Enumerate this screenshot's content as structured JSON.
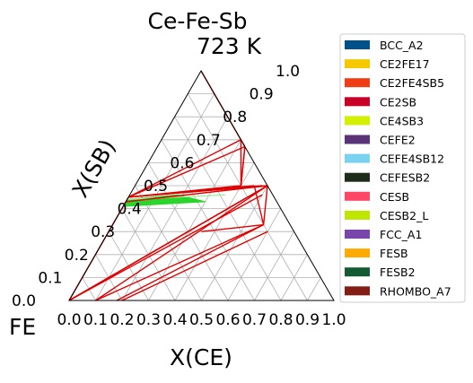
{
  "chart_data": {
    "type": "ternary-phase-diagram",
    "title": "Ce-Fe-Sb",
    "subtitle": "723  K",
    "corner_label": "FE",
    "xlabel": "X(CE)",
    "ylabel": "X(SB)",
    "xlim": [
      0,
      1
    ],
    "ylim": [
      0,
      1
    ],
    "x_ticks": [
      "0.0",
      "0.1",
      "0.2",
      "0.3",
      "0.4",
      "0.5",
      "0.6",
      "0.7",
      "0.8",
      "0.9",
      "1.0"
    ],
    "y_ticks": [
      "0.0",
      "0.1",
      "0.2",
      "0.3",
      "0.4",
      "0.5",
      "0.6",
      "0.7",
      "0.8",
      "0.9",
      "1.0"
    ],
    "grid": true,
    "legend_position": "right",
    "legend": [
      {
        "name": "BCC_A2",
        "color": "#00508C"
      },
      {
        "name": "CE2FE17",
        "color": "#F5C800"
      },
      {
        "name": "CE2FE4SB5",
        "color": "#F03C14"
      },
      {
        "name": "CE2SB",
        "color": "#C80028"
      },
      {
        "name": "CE4SB3",
        "color": "#D2F000"
      },
      {
        "name": "CEFE2",
        "color": "#5A3278"
      },
      {
        "name": "CEFE4SB12",
        "color": "#78D2F0"
      },
      {
        "name": "CEFESB2",
        "color": "#1E2D19"
      },
      {
        "name": "CESB",
        "color": "#FF4664"
      },
      {
        "name": "CESB2_L",
        "color": "#BEE600"
      },
      {
        "name": "FCC_A1",
        "color": "#7846AA"
      },
      {
        "name": "FESB",
        "color": "#FFAA00"
      },
      {
        "name": "FESB2",
        "color": "#145A32"
      },
      {
        "name": "RHOMBO_A7",
        "color": "#821E14"
      }
    ],
    "tie_line_color": "#E00000",
    "series": [
      {
        "color": "#E00000",
        "points": [
          [
            0.0,
            0.45
          ],
          [
            0.5,
            0.5
          ]
        ]
      },
      {
        "color": "#E00000",
        "points": [
          [
            0.0,
            0.43
          ],
          [
            0.5,
            0.5
          ]
        ]
      },
      {
        "color": "#E00000",
        "points": [
          [
            0.0,
            0.45
          ],
          [
            0.3,
            0.7
          ]
        ]
      },
      {
        "color": "#E00000",
        "points": [
          [
            0.0,
            1.0
          ],
          [
            0.3,
            0.7
          ]
        ]
      },
      {
        "color": "#E00000",
        "points": [
          [
            0.3,
            0.7
          ],
          [
            0.4,
            0.5
          ]
        ]
      },
      {
        "color": "#E00000",
        "points": [
          [
            0.3,
            0.7
          ],
          [
            0.33,
            0.67
          ]
        ]
      },
      {
        "color": "#E00000",
        "points": [
          [
            0.4,
            0.5
          ],
          [
            0.33,
            0.67
          ]
        ]
      },
      {
        "color": "#E00000",
        "points": [
          [
            0.0,
            0.45
          ],
          [
            0.33,
            0.67
          ]
        ]
      },
      {
        "color": "#E00000",
        "points": [
          [
            0.0,
            0.45
          ],
          [
            0.4,
            0.5
          ]
        ]
      },
      {
        "color": "#E00000",
        "points": [
          [
            0.0,
            0.0
          ],
          [
            0.0,
            0.45
          ]
        ]
      },
      {
        "color": "#E00000",
        "points": [
          [
            0.0,
            0.0
          ],
          [
            0.5,
            0.5
          ]
        ]
      },
      {
        "color": "#E00000",
        "points": [
          [
            0.0,
            0.0
          ],
          [
            0.47,
            0.47
          ]
        ]
      },
      {
        "color": "#E00000",
        "points": [
          [
            0.0,
            0.0
          ],
          [
            0.44,
            0.44
          ]
        ]
      },
      {
        "color": "#E00000",
        "points": [
          [
            0.0,
            0.0
          ],
          [
            0.5,
            0.46
          ]
        ]
      },
      {
        "color": "#E00000",
        "points": [
          [
            0.1,
            0.0
          ],
          [
            0.5,
            0.5
          ]
        ]
      },
      {
        "color": "#E00000",
        "points": [
          [
            0.1,
            0.0
          ],
          [
            0.57,
            0.33
          ]
        ]
      },
      {
        "color": "#E00000",
        "points": [
          [
            0.18,
            0.0
          ],
          [
            0.57,
            0.33
          ]
        ]
      },
      {
        "color": "#E00000",
        "points": [
          [
            0.57,
            0.33
          ],
          [
            0.5,
            0.5
          ]
        ]
      },
      {
        "color": "#E00000",
        "points": [
          [
            0.57,
            0.33
          ],
          [
            0.45,
            0.5
          ]
        ]
      },
      {
        "color": "#E00000",
        "points": [
          [
            0.57,
            0.33
          ],
          [
            0.35,
            0.3
          ]
        ]
      },
      {
        "color": "#E00000",
        "points": [
          [
            0.33,
            0.67
          ],
          [
            0.4,
            0.5
          ]
        ]
      },
      {
        "color": "#E00000",
        "points": [
          [
            0.0,
            0.45
          ],
          [
            0.45,
            0.5
          ]
        ]
      },
      {
        "color": "#E00000",
        "points": [
          [
            0.0,
            0.45
          ],
          [
            0.48,
            0.5
          ]
        ]
      },
      {
        "color": "#E00000",
        "points": [
          [
            0.2,
            0.0
          ],
          [
            0.6,
            0.3
          ]
        ]
      }
    ],
    "green_region": {
      "color": "#2BD52B",
      "points": [
        [
          0.0,
          0.44
        ],
        [
          0.0,
          0.41
        ],
        [
          0.3,
          0.43
        ],
        [
          0.18,
          0.46
        ]
      ]
    },
    "green_lines": [
      {
        "color": "#9AEF9A",
        "points": [
          [
            0.0,
            0.45
          ],
          [
            0.4,
            0.5
          ]
        ]
      },
      {
        "color": "#9AEF9A",
        "points": [
          [
            0.0,
            0.44
          ],
          [
            0.36,
            0.46
          ]
        ]
      }
    ]
  }
}
